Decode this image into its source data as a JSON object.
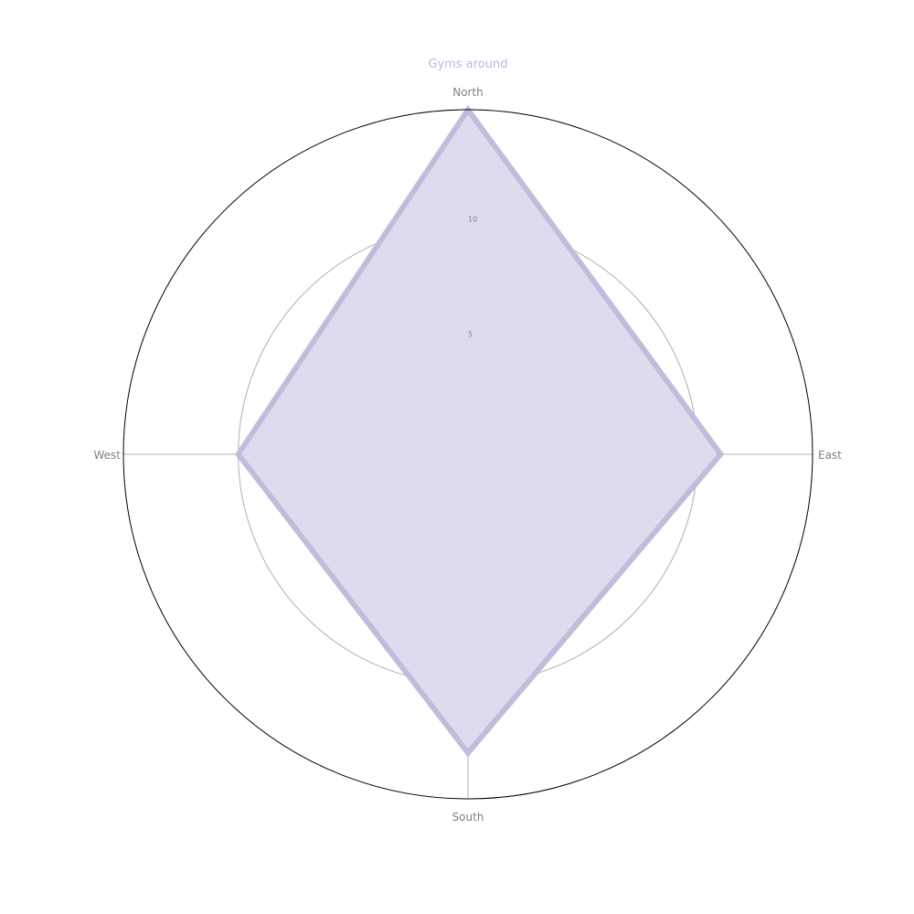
{
  "chart_data": {
    "type": "radar",
    "title": "Gyms around",
    "categories": [
      "North",
      "East",
      "South",
      "West"
    ],
    "series": [
      {
        "values": [
          15,
          11,
          13,
          10
        ]
      }
    ],
    "rlim": [
      0,
      15
    ],
    "rticks": [
      5,
      10
    ],
    "rtick_labels": [
      "5",
      "10"
    ],
    "grid": true,
    "colors": {
      "series_line": "#c0bcdc",
      "series_fill": "#dfdbef",
      "grid": "#b0b0b0",
      "outer_ring": "#000000",
      "label_text": "#808080",
      "title_text": "#bcb7dc"
    }
  }
}
